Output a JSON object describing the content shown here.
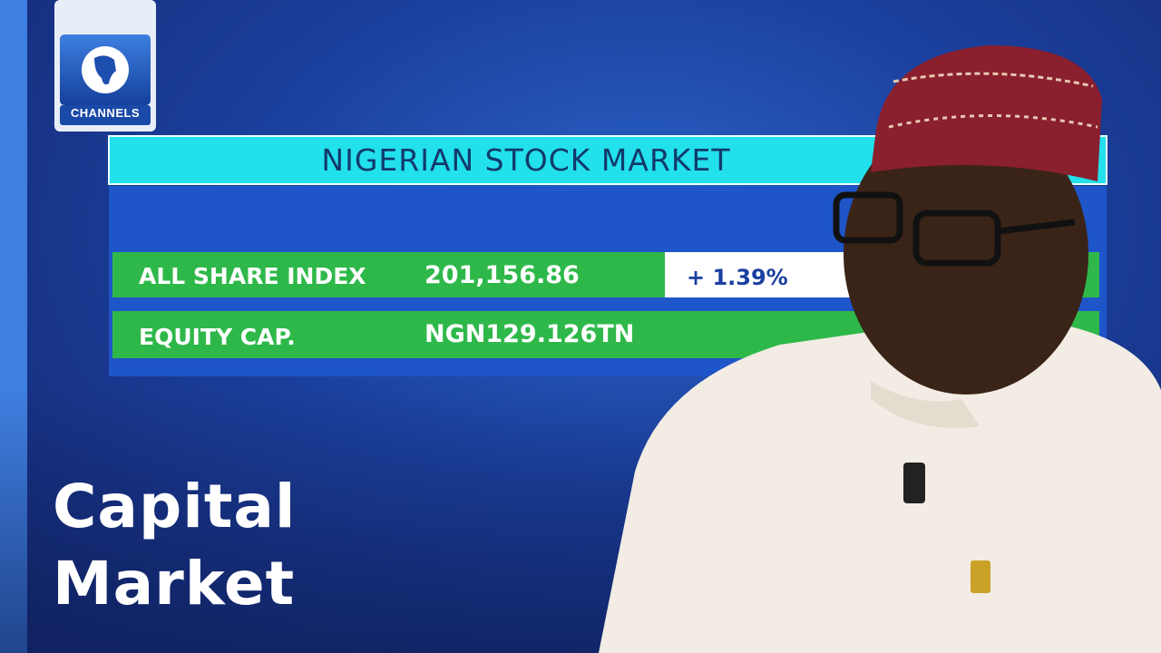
{
  "logo": {
    "text": "CHANNELS"
  },
  "board": {
    "title": "NIGERIAN STOCK MARKET",
    "rows": [
      {
        "label": "ALL SHARE INDEX",
        "value": "201,156.86",
        "change": "+ 1.39%"
      },
      {
        "label": "EQUITY CAP.",
        "value": "NGN129.126TN"
      }
    ]
  },
  "caption": {
    "lines": [
      "Capital",
      "Market"
    ]
  }
}
